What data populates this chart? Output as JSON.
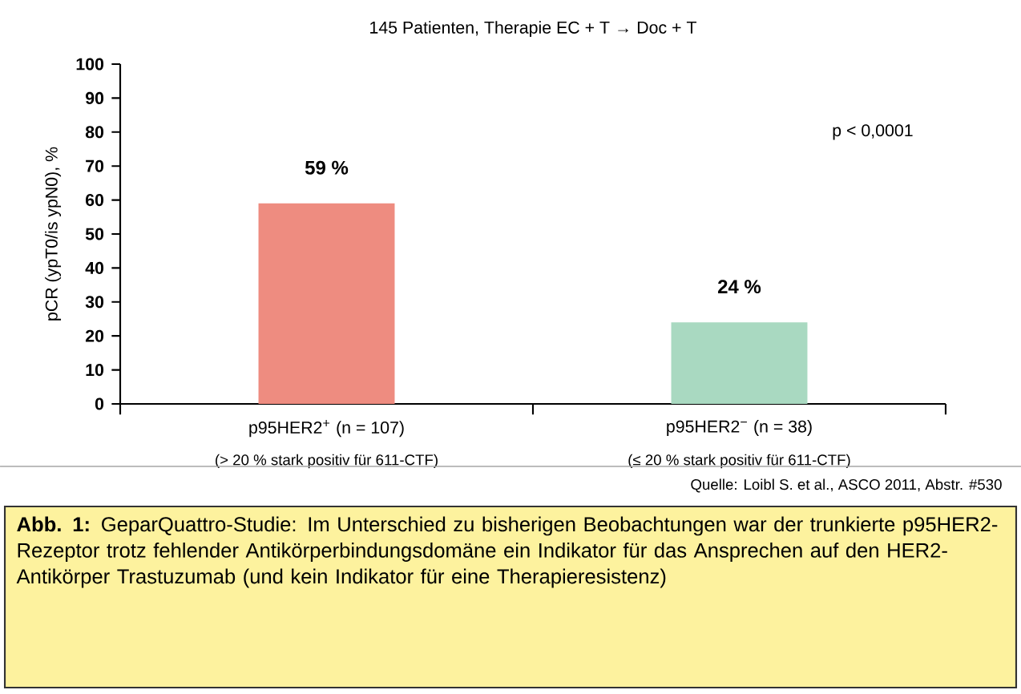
{
  "chart_data": {
    "type": "bar",
    "title": "145 Patienten, Therapie EC + T → Doc + T",
    "ylabel": "pCR (ypT0/is ypN0), %",
    "categories": [
      "p95HER2$^{+}$ (n = 107)",
      "p95HER2$^{−}$ (n = 38)"
    ],
    "values": [
      59,
      24
    ],
    "value_labels": [
      "59 %",
      "24 %"
    ],
    "colors": [
      "#ee8c80",
      "#a9d9c1"
    ],
    "ylim": [
      0,
      100
    ],
    "yticks": [
      0,
      10,
      20,
      30,
      40,
      50,
      60,
      70,
      80,
      90,
      100
    ],
    "annotations": [
      "p < 0,0001",
      "(> 20 % stark positiv für 611-CTF)",
      "(≤ 20 % stark positiv für 611-CTF)",
      "Quelle: Loibl S. et al., ASCO 2011, Abstr. #530",
      "**Abb. 1:** GeparQuattro-Studie: Im Unterschied zu bisherigen Beobachtungen war der trunkierte p95HER2-Rezeptor trotz fehlender Antikörperbindungsdomäne ein Indikator für das Ansprechen auf den HER2-Antikörper Trastuzumab (und kein Indikator für eine Therapieresistenz)"
    ]
  }
}
